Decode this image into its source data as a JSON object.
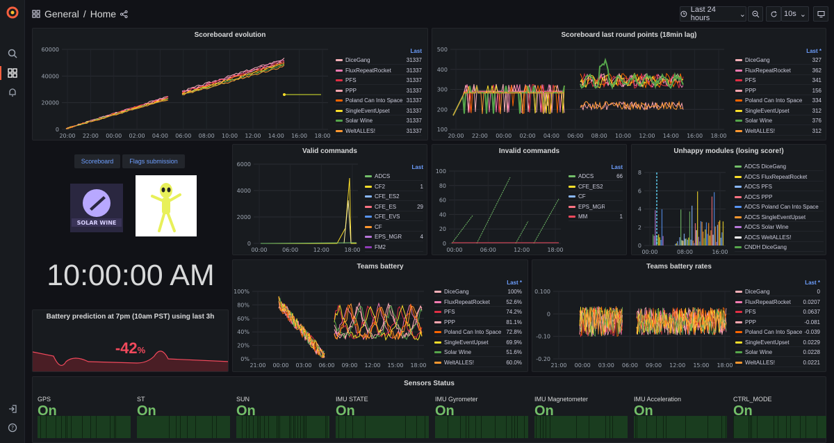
{
  "breadcrumb": {
    "folder": "General",
    "separator": "/",
    "page": "Home"
  },
  "toolbar": {
    "time_range": "Last 24 hours",
    "refresh": "10s"
  },
  "colors": {
    "accent": "#f55f3e",
    "link": "#6e9fff",
    "green": "#73bf69",
    "red": "#f2495c"
  },
  "teams": [
    "DiceGang",
    "FluxRepeatRocket",
    "PFS",
    "PPP",
    "Poland Can Into Space",
    "SingleEventUpset",
    "Solar Wine",
    "WeltALLES!"
  ],
  "team_colors": [
    "#f7b0b8",
    "#f27bb1",
    "#e02f44",
    "#ffa6b0",
    "#fa6400",
    "#fade2a",
    "#56a64b",
    "#ff9830"
  ],
  "scoreboard_evolution": {
    "title": "Scoreboard evolution",
    "legend_header": "Last",
    "values": [
      "31337",
      "31337",
      "31337",
      "31337",
      "31337",
      "31337",
      "31337",
      "31337"
    ],
    "chart_data": {
      "type": "line",
      "x_ticks": [
        "20:00",
        "22:00",
        "00:00",
        "02:00",
        "04:00",
        "06:00",
        "08:00",
        "10:00",
        "12:00",
        "14:00",
        "16:00",
        "18:00"
      ],
      "y_ticks": [
        "0",
        "20000",
        "40000",
        "60000"
      ],
      "ylim": [
        0,
        68000
      ]
    }
  },
  "scoreboard_last_round": {
    "title": "Scoreboard last round points (18min lag)",
    "legend_header": "Last *",
    "values": [
      "327",
      "362",
      "341",
      "156",
      "334",
      "312",
      "376",
      "312"
    ],
    "chart_data": {
      "type": "line",
      "x_ticks": [
        "20:00",
        "22:00",
        "00:00",
        "02:00",
        "04:00",
        "06:00",
        "08:00",
        "10:00",
        "12:00",
        "14:00",
        "16:00",
        "18:00"
      ],
      "y_ticks": [
        "100",
        "200",
        "300",
        "400",
        "500"
      ],
      "ylim": [
        0,
        550
      ]
    }
  },
  "links": {
    "scoreboard": "Scoreboard",
    "flags": "Flags submission"
  },
  "logo": {
    "text": "SOLAR WINE"
  },
  "clock": "10:00:00 AM",
  "battery_prediction": {
    "title": "Battery prediction at 7pm (10am PST) using last 3h",
    "value": "-42",
    "unit": "%"
  },
  "valid_commands": {
    "title": "Valid commands",
    "legend_header": "Last",
    "legend": [
      {
        "name": "ADCS",
        "value": "",
        "color": "#73bf69"
      },
      {
        "name": "CF2",
        "value": "1",
        "color": "#fade2a"
      },
      {
        "name": "CFE_ES2",
        "value": "",
        "color": "#8ab8ff"
      },
      {
        "name": "CFE_ES",
        "value": "29",
        "color": "#ff7383"
      },
      {
        "name": "CFE_EVS",
        "value": "",
        "color": "#5794f2"
      },
      {
        "name": "CF",
        "value": "",
        "color": "#ff9830"
      },
      {
        "name": "EPS_MGR",
        "value": "4",
        "color": "#b877d9"
      },
      {
        "name": "FM2",
        "value": "",
        "color": "#8f3bb8"
      }
    ],
    "chart_data": {
      "type": "line",
      "x_ticks": [
        "00:00",
        "06:00",
        "12:00",
        "18:00"
      ],
      "y_ticks": [
        "0",
        "2000",
        "4000",
        "6000"
      ],
      "ylim": [
        0,
        7000
      ]
    }
  },
  "invalid_commands": {
    "title": "Invalid commands",
    "legend_header": "Last",
    "legend": [
      {
        "name": "ADCS",
        "value": "66",
        "color": "#73bf69"
      },
      {
        "name": "CFE_ES2",
        "value": "",
        "color": "#fade2a"
      },
      {
        "name": "CF",
        "value": "",
        "color": "#8ab8ff"
      },
      {
        "name": "EPS_MGR",
        "value": "",
        "color": "#ff7383"
      },
      {
        "name": "MM",
        "value": "1",
        "color": "#f2495c"
      }
    ],
    "chart_data": {
      "type": "line",
      "x_ticks": [
        "00:00",
        "06:00",
        "12:00",
        "18:00"
      ],
      "y_ticks": [
        "0",
        "20",
        "40",
        "60",
        "80",
        "100"
      ],
      "ylim": [
        0,
        105
      ]
    }
  },
  "unhappy_modules": {
    "title": "Unhappy modules (losing score!)",
    "legend": [
      {
        "name": "ADCS DiceGang",
        "color": "#73bf69"
      },
      {
        "name": "ADCS FluxRepeatRocket",
        "color": "#fade2a"
      },
      {
        "name": "ADCS PFS",
        "color": "#8ab8ff"
      },
      {
        "name": "ADCS PPP",
        "color": "#ff7383"
      },
      {
        "name": "ADCS Poland Can Into Space",
        "color": "#5794f2"
      },
      {
        "name": "ADCS SingleEventUpset",
        "color": "#ff9830"
      },
      {
        "name": "ADCS Solar Wine",
        "color": "#b877d9"
      },
      {
        "name": "ADCS WeltALLES!",
        "color": "#ffffff"
      },
      {
        "name": "CNDH DiceGang",
        "color": "#56a64b"
      }
    ],
    "chart_data": {
      "type": "bar",
      "x_ticks": [
        "00:00",
        "08:00",
        "16:00"
      ],
      "y_ticks": [
        "0",
        "2",
        "4",
        "6",
        "8"
      ],
      "ylim": [
        0,
        9
      ]
    }
  },
  "teams_battery": {
    "title": "Teams battery",
    "legend_header": "Last *",
    "values": [
      "100%",
      "52.6%",
      "74.2%",
      "81.1%",
      "72.8%",
      "69.9%",
      "51.6%",
      "60.0%"
    ],
    "chart_data": {
      "type": "line",
      "x_ticks": [
        "21:00",
        "00:00",
        "03:00",
        "06:00",
        "09:00",
        "12:00",
        "15:00",
        "18:00"
      ],
      "y_ticks": [
        "0%",
        "20%",
        "40%",
        "60%",
        "80%",
        "100%"
      ],
      "ylim": [
        0,
        100
      ]
    }
  },
  "teams_battery_rates": {
    "title": "Teams battery rates",
    "legend_header": "Last *",
    "values": [
      "0",
      "0.0207",
      "0.0637",
      "-0.081",
      "-0.039",
      "0.0229",
      "0.0228",
      "0.0221"
    ],
    "chart_data": {
      "type": "line",
      "x_ticks": [
        "21:00",
        "00:00",
        "03:00",
        "06:00",
        "09:00",
        "12:00",
        "15:00",
        "18:00"
      ],
      "y_ticks": [
        "-0.20",
        "-0.10",
        "0",
        "0.100"
      ],
      "ylim": [
        -0.22,
        0.14
      ]
    }
  },
  "sensors": {
    "title": "Sensors Status",
    "items": [
      {
        "label": "GPS",
        "value": "On"
      },
      {
        "label": "ST",
        "value": "On"
      },
      {
        "label": "SUN",
        "value": "On"
      },
      {
        "label": "IMU STATE",
        "value": "On"
      },
      {
        "label": "IMU Gyrometer",
        "value": "On"
      },
      {
        "label": "IMU Magnetometer",
        "value": "On"
      },
      {
        "label": "IMU Acceleration",
        "value": "On"
      },
      {
        "label": "CTRL_MODE",
        "value": "On"
      }
    ]
  }
}
